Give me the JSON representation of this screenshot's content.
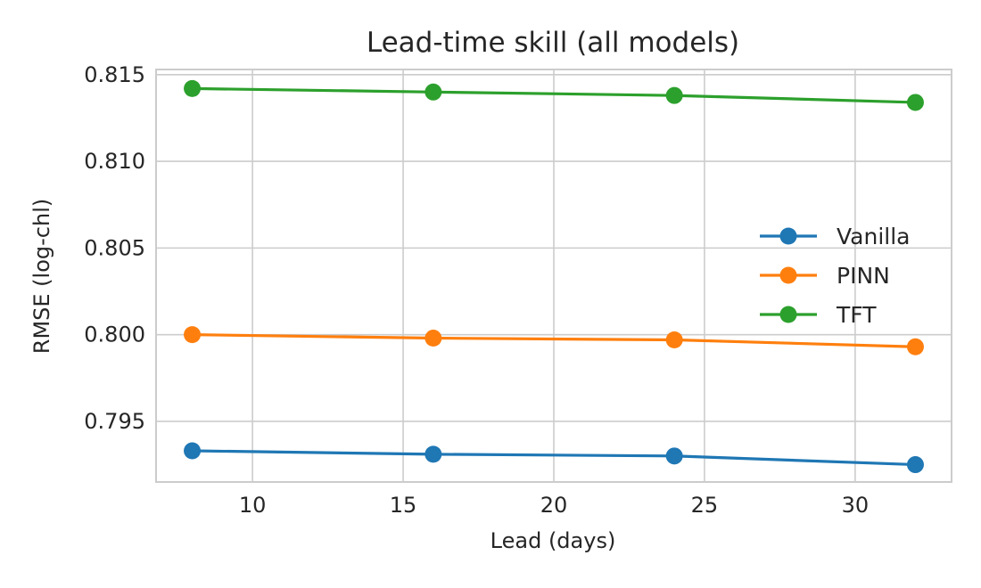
{
  "chart_data": {
    "type": "line",
    "title": "Lead-time skill (all models)",
    "xlabel": "Lead (days)",
    "ylabel": "RMSE (log-chl)",
    "x": [
      8,
      16,
      24,
      32
    ],
    "xlim": [
      6.8,
      33.2
    ],
    "ylim": [
      0.7915,
      0.8153
    ],
    "xticks": [
      10,
      15,
      20,
      25,
      30
    ],
    "yticks": [
      0.795,
      0.8,
      0.805,
      0.81,
      0.815
    ],
    "xtick_labels": [
      "10",
      "15",
      "20",
      "25",
      "30"
    ],
    "ytick_labels": [
      "0.795",
      "0.800",
      "0.805",
      "0.810",
      "0.815"
    ],
    "grid": true,
    "legend_position": "center-right",
    "series": [
      {
        "name": "Vanilla",
        "color": "#1f77b4",
        "values": [
          0.7933,
          0.7931,
          0.793,
          0.7925
        ]
      },
      {
        "name": "PINN",
        "color": "#ff7f0e",
        "values": [
          0.8,
          0.7998,
          0.7997,
          0.7993
        ]
      },
      {
        "name": "TFT",
        "color": "#2ca02c",
        "values": [
          0.8142,
          0.814,
          0.8138,
          0.8134
        ]
      }
    ]
  }
}
